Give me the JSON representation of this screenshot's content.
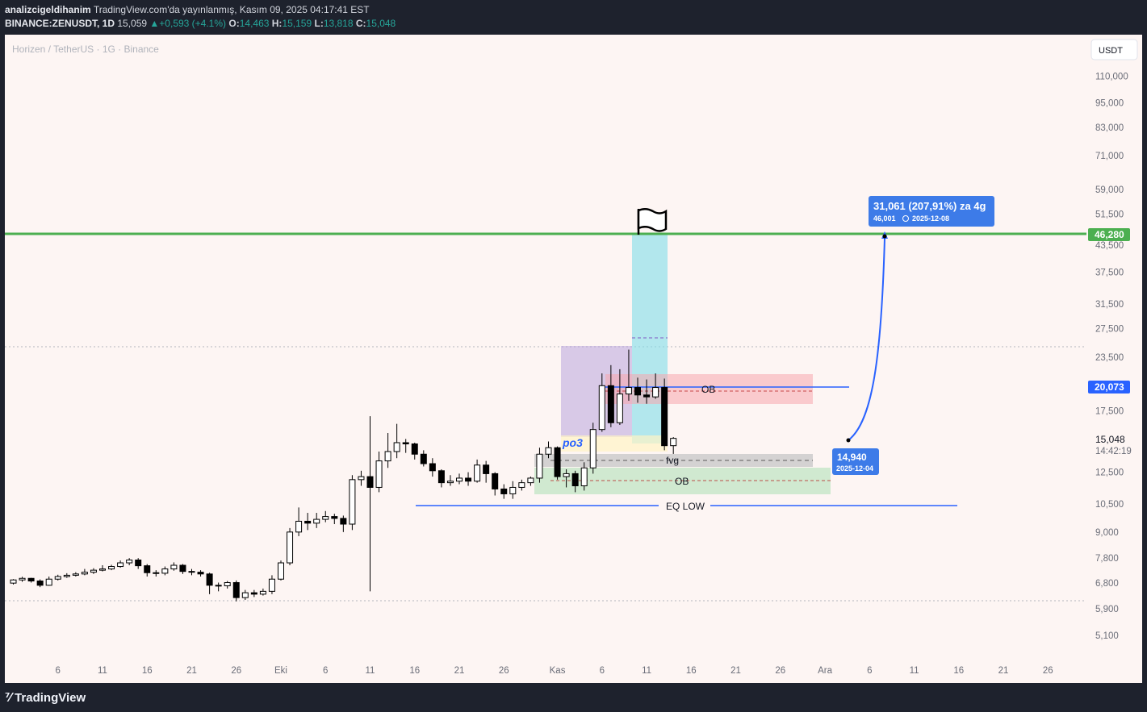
{
  "header": {
    "author": "analizcigeldihanim",
    "published": "TradingView.com'da yayınlanmış, Kasım 09, 2025 04:17:41 EST",
    "symbol": "BINANCE:ZENUSDT, 1D",
    "last": "15,059",
    "change": "+0,593 (+4.1%)",
    "o_label": "O:",
    "o": "14,463",
    "h_label": "H:",
    "h": "15,159",
    "l_label": "L:",
    "l": "13,818",
    "c_label": "C:",
    "c": "15,048"
  },
  "chart_data": {
    "type": "candlestick",
    "title": "Horizen / TetherUS · 1G · Binance",
    "currency": "USDT",
    "y_scale": "log",
    "y_ticks": [
      {
        "label": "110,000",
        "v": 110000
      },
      {
        "label": "95,000",
        "v": 95000
      },
      {
        "label": "83,000",
        "v": 83000
      },
      {
        "label": "71,000",
        "v": 71000
      },
      {
        "label": "59,000",
        "v": 59000
      },
      {
        "label": "51,500",
        "v": 51500
      },
      {
        "label": "43,500",
        "v": 43500
      },
      {
        "label": "37,500",
        "v": 37500
      },
      {
        "label": "31,500",
        "v": 31500
      },
      {
        "label": "27,500",
        "v": 27500
      },
      {
        "label": "23,500",
        "v": 23500
      },
      {
        "label": "17,500",
        "v": 17500
      },
      {
        "label": "12,500",
        "v": 12500
      },
      {
        "label": "10,500",
        "v": 10500
      },
      {
        "label": "9,000",
        "v": 9000
      },
      {
        "label": "7,800",
        "v": 7800
      },
      {
        "label": "6,800",
        "v": 6800
      },
      {
        "label": "5,900",
        "v": 5900
      },
      {
        "label": "5,100",
        "v": 5100
      }
    ],
    "x_start": "2025-09-01",
    "x_ticks": [
      {
        "label": "6",
        "date": "2025-09-06"
      },
      {
        "label": "11",
        "date": "2025-09-11"
      },
      {
        "label": "16",
        "date": "2025-09-16"
      },
      {
        "label": "21",
        "date": "2025-09-21"
      },
      {
        "label": "26",
        "date": "2025-09-26"
      },
      {
        "label": "Eki",
        "date": "2025-10-01"
      },
      {
        "label": "6",
        "date": "2025-10-06"
      },
      {
        "label": "11",
        "date": "2025-10-11"
      },
      {
        "label": "16",
        "date": "2025-10-16"
      },
      {
        "label": "21",
        "date": "2025-10-21"
      },
      {
        "label": "26",
        "date": "2025-10-26"
      },
      {
        "label": "Kas",
        "date": "2025-11-01"
      },
      {
        "label": "6",
        "date": "2025-11-06"
      },
      {
        "label": "11",
        "date": "2025-11-11"
      },
      {
        "label": "16",
        "date": "2025-11-16"
      },
      {
        "label": "21",
        "date": "2025-11-21"
      },
      {
        "label": "26",
        "date": "2025-11-26"
      },
      {
        "label": "Ara",
        "date": "2025-12-01"
      },
      {
        "label": "6",
        "date": "2025-12-06"
      },
      {
        "label": "11",
        "date": "2025-12-11"
      },
      {
        "label": "16",
        "date": "2025-12-16"
      },
      {
        "label": "21",
        "date": "2025-12-21"
      },
      {
        "label": "26",
        "date": "2025-12-26"
      }
    ],
    "candles": [
      [
        6.8,
        6.92,
        6.75,
        6.95
      ],
      [
        6.92,
        6.98,
        6.85,
        7.04
      ],
      [
        6.98,
        6.88,
        6.82,
        7.0
      ],
      [
        6.88,
        6.72,
        6.65,
        6.94
      ],
      [
        6.72,
        6.95,
        6.7,
        7.05
      ],
      [
        6.95,
        7.05,
        6.9,
        7.12
      ],
      [
        7.05,
        7.1,
        7.0,
        7.18
      ],
      [
        7.1,
        7.15,
        7.05,
        7.22
      ],
      [
        7.15,
        7.22,
        7.1,
        7.35
      ],
      [
        7.22,
        7.3,
        7.15,
        7.38
      ],
      [
        7.3,
        7.35,
        7.25,
        7.5
      ],
      [
        7.35,
        7.45,
        7.3,
        7.52
      ],
      [
        7.45,
        7.6,
        7.4,
        7.7
      ],
      [
        7.6,
        7.72,
        7.5,
        7.8
      ],
      [
        7.72,
        7.48,
        7.35,
        7.8
      ],
      [
        7.48,
        7.2,
        7.05,
        7.55
      ],
      [
        7.2,
        7.18,
        7.05,
        7.3
      ],
      [
        7.18,
        7.35,
        7.1,
        7.45
      ],
      [
        7.35,
        7.5,
        7.28,
        7.62
      ],
      [
        7.5,
        7.25,
        7.15,
        7.55
      ],
      [
        7.25,
        7.22,
        7.1,
        7.35
      ],
      [
        7.22,
        7.15,
        7.05,
        7.3
      ],
      [
        7.15,
        6.72,
        6.4,
        7.2
      ],
      [
        6.72,
        6.7,
        6.5,
        6.82
      ],
      [
        6.7,
        6.82,
        6.6,
        6.88
      ],
      [
        6.82,
        6.28,
        6.15,
        6.9
      ],
      [
        6.28,
        6.45,
        6.2,
        6.55
      ],
      [
        6.45,
        6.4,
        6.3,
        6.55
      ],
      [
        6.4,
        6.5,
        6.35,
        6.6
      ],
      [
        6.5,
        6.95,
        6.4,
        7.1
      ],
      [
        6.95,
        7.6,
        6.9,
        7.7
      ],
      [
        7.6,
        9.0,
        7.5,
        9.2
      ],
      [
        9.0,
        9.55,
        8.8,
        10.3
      ],
      [
        9.55,
        9.45,
        9.1,
        10.0
      ],
      [
        9.45,
        9.65,
        9.2,
        10.0
      ],
      [
        9.65,
        9.8,
        9.5,
        10.1
      ],
      [
        9.8,
        9.7,
        9.4,
        9.95
      ],
      [
        9.7,
        9.4,
        9.0,
        9.85
      ],
      [
        9.4,
        12.0,
        9.1,
        12.3
      ],
      [
        12.0,
        12.2,
        11.6,
        12.6
      ],
      [
        12.2,
        11.5,
        6.5,
        17.0
      ],
      [
        11.5,
        13.3,
        11.2,
        14.0
      ],
      [
        13.3,
        14.0,
        12.8,
        15.5
      ],
      [
        14.0,
        14.7,
        13.5,
        16.3
      ],
      [
        14.7,
        14.6,
        13.9,
        15.0
      ],
      [
        14.6,
        13.8,
        13.4,
        14.7
      ],
      [
        13.8,
        13.1,
        12.9,
        14.1
      ],
      [
        13.1,
        12.6,
        12.2,
        13.5
      ],
      [
        12.6,
        11.8,
        11.5,
        12.7
      ],
      [
        11.8,
        11.9,
        11.6,
        12.3
      ],
      [
        11.9,
        12.1,
        11.7,
        12.4
      ],
      [
        12.1,
        11.9,
        11.6,
        12.5
      ],
      [
        11.9,
        13.0,
        11.8,
        13.4
      ],
      [
        13.0,
        12.4,
        11.8,
        13.3
      ],
      [
        12.4,
        11.4,
        11.0,
        12.5
      ],
      [
        11.4,
        11.1,
        10.8,
        11.7
      ],
      [
        11.1,
        11.5,
        10.8,
        11.9
      ],
      [
        11.5,
        11.8,
        11.3,
        12.0
      ],
      [
        11.8,
        12.1,
        11.6,
        12.2
      ],
      [
        12.1,
        13.8,
        11.8,
        14.3
      ],
      [
        13.8,
        14.3,
        13.5,
        14.8
      ],
      [
        14.3,
        12.2,
        12.0,
        14.4
      ],
      [
        12.2,
        12.4,
        11.5,
        12.7
      ],
      [
        12.4,
        11.6,
        11.2,
        12.6
      ],
      [
        11.6,
        12.8,
        11.3,
        13.2
      ],
      [
        12.8,
        15.8,
        12.4,
        16.4
      ],
      [
        15.8,
        20.1,
        15.6,
        21.5
      ],
      [
        20.1,
        16.4,
        16.0,
        22.5
      ],
      [
        16.4,
        19.2,
        16.2,
        22.0
      ],
      [
        19.2,
        19.9,
        18.5,
        24.5
      ],
      [
        19.9,
        19.1,
        18.3,
        21.0
      ],
      [
        19.1,
        18.9,
        18.2,
        20.8
      ],
      [
        18.9,
        19.9,
        18.7,
        21.5
      ],
      [
        19.9,
        14.46,
        14.1,
        20.9
      ],
      [
        14.46,
        15.05,
        13.82,
        15.16
      ]
    ]
  },
  "annotations": {
    "resistance_price": "46,280",
    "level_20073": "20,073",
    "current_price": "15,048",
    "countdown": "14:42:19",
    "ob_upper": "OB",
    "fvg": "fvg",
    "ob_lower": "OB",
    "eq_low": "EQ LOW",
    "po3": "po3",
    "projection_main": "31,061 (207,91%) za 4g",
    "projection_sub": "46,001",
    "projection_sub_date": "2025-12-08",
    "start_label": "14,940",
    "start_date": "2025-12-04"
  },
  "colors": {
    "up": "#ffffff",
    "down": "#000000",
    "grid_dots": "#b2b5be",
    "green_line": "#4caf50",
    "blue": "#2962ff",
    "ob_red": "#f7a6ad",
    "gray_zone": "#c9c9c9",
    "green_zone": "#c8e6c9",
    "purple": "#b39ddb",
    "cyan": "#80deea",
    "tag_bg": "#3d7be8",
    "green_tag": "#4caf50"
  },
  "footer": {
    "brand": "TradingView"
  }
}
